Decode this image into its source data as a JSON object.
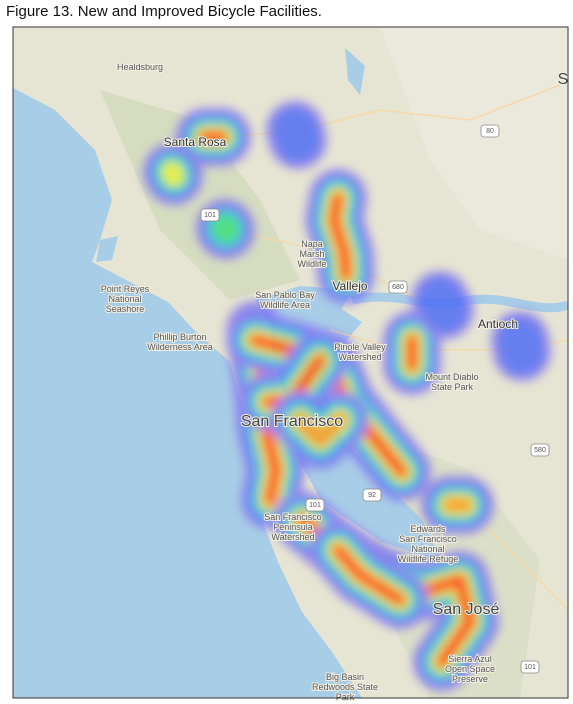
{
  "title": "Figure 13. New and Improved Bicycle Facilities.",
  "map": {
    "places": [
      {
        "lines": [
          "Healdsburg"
        ]
      },
      {
        "lines": [
          "Santa Rosa"
        ]
      },
      {
        "lines": [
          "Napa",
          "Marsh",
          "Wildlife"
        ]
      },
      {
        "lines": [
          "Vallejo"
        ]
      },
      {
        "lines": [
          "Point Reyes",
          "National",
          "Seashore"
        ]
      },
      {
        "lines": [
          "Phillip Burton",
          "Wilderness Area"
        ]
      },
      {
        "lines": [
          "San Pablo Bay",
          "Wildlife Area"
        ]
      },
      {
        "lines": [
          "Antioch"
        ]
      },
      {
        "lines": [
          "Mount Diablo",
          "State Park"
        ]
      },
      {
        "lines": [
          "San Francisco"
        ]
      },
      {
        "lines": [
          "San Francisco",
          "Peninsula",
          "Watershed"
        ]
      },
      {
        "lines": [
          "Edwards",
          "San Francisco",
          "National",
          "Wildlife Refuge"
        ]
      },
      {
        "lines": [
          "San José"
        ]
      },
      {
        "lines": [
          "Sierra Azul",
          "Open Space",
          "Preserve"
        ]
      },
      {
        "lines": [
          "Big Basin",
          "Redwoods State",
          "Park"
        ]
      },
      {
        "lines": [
          "Pinole Valley",
          "Watershed"
        ]
      },
      {
        "lines": [
          "S"
        ]
      }
    ],
    "shields": [
      "80",
      "101",
      "680",
      "580",
      "101",
      "92",
      "101"
    ]
  }
}
